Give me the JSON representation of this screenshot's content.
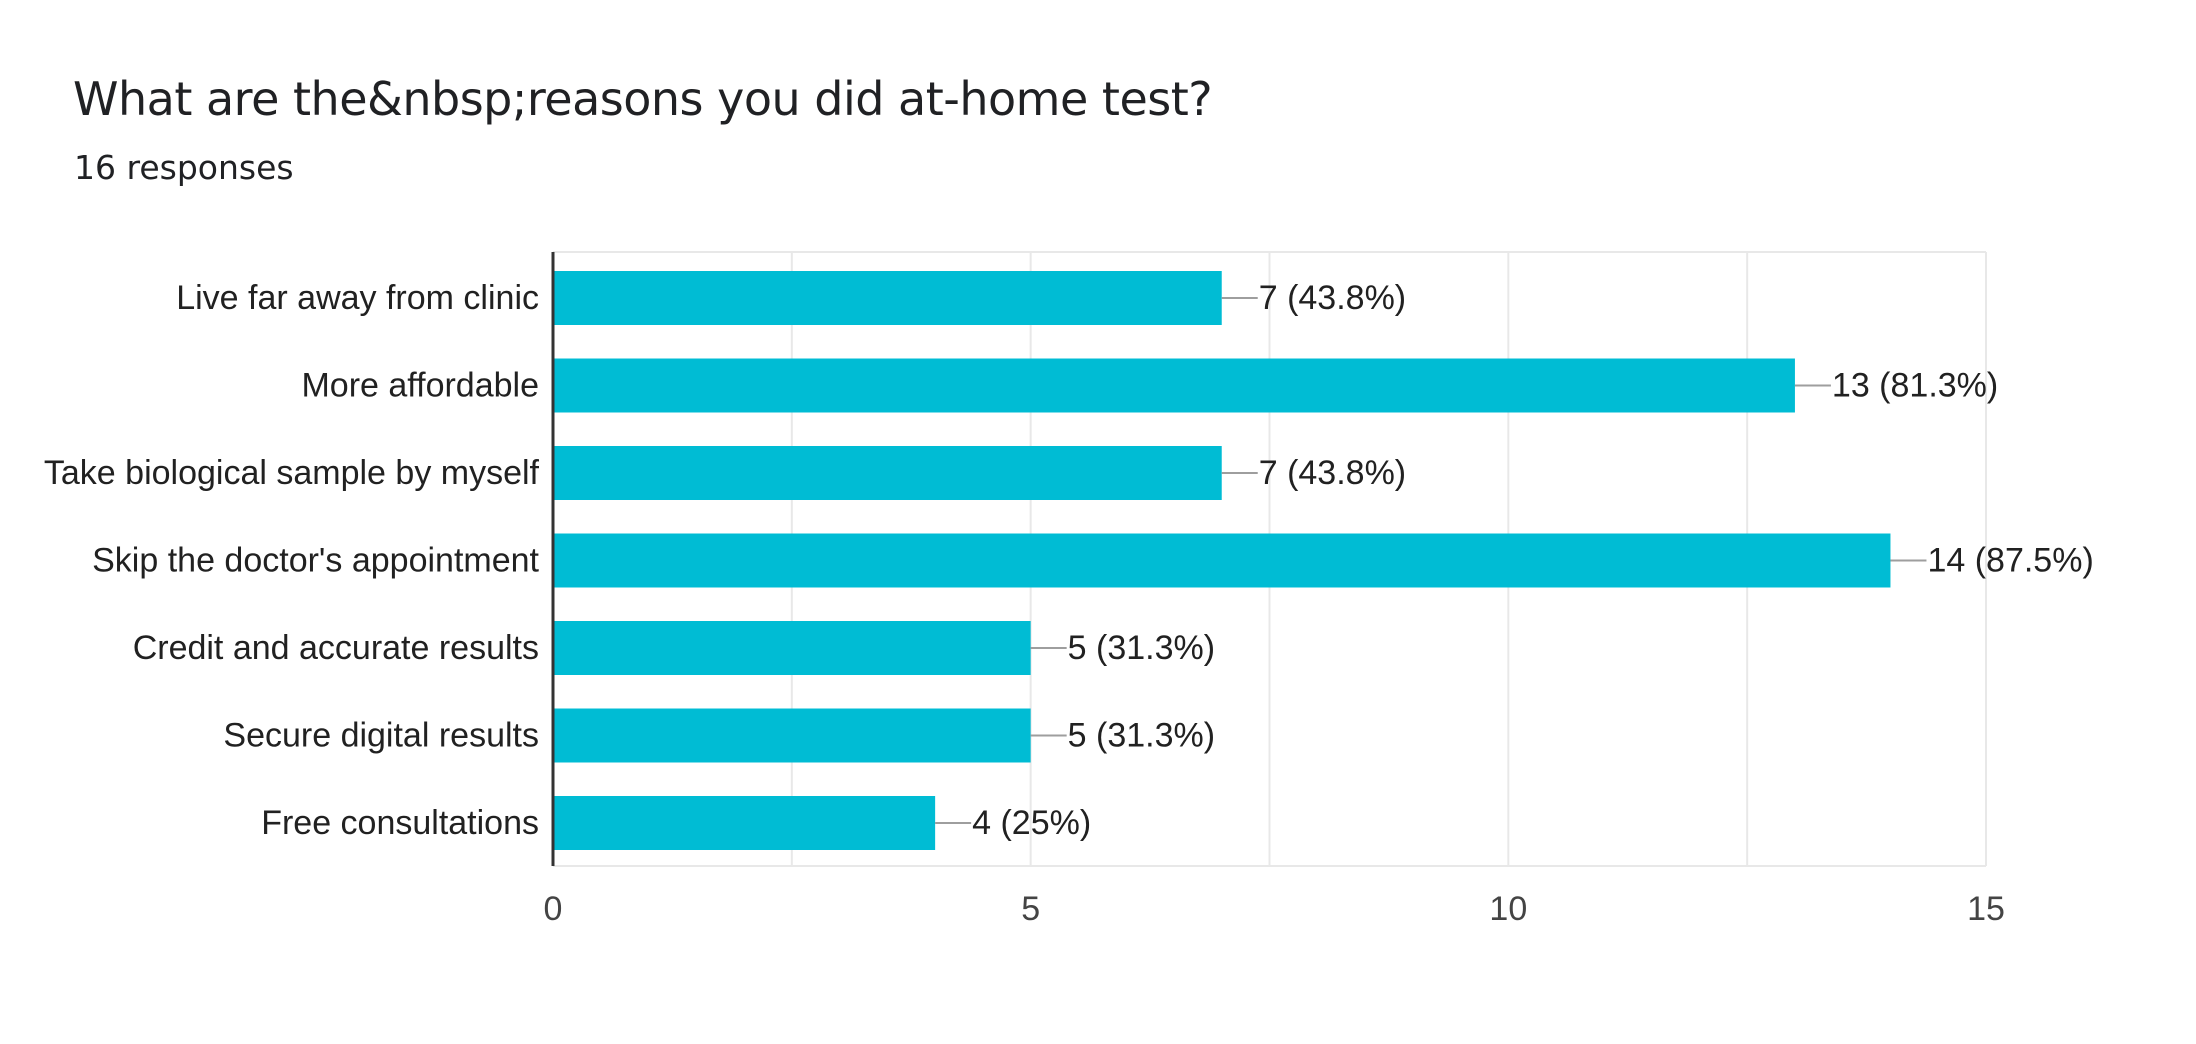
{
  "header": {
    "title": "What are the&nbsp;reasons you did at-home test?",
    "subtitle": "16 responses"
  },
  "colors": {
    "bar": "#00bcd4",
    "grid": "#e8e8e8",
    "axis": "#333333",
    "leader": "#9e9e9e"
  },
  "chart_data": {
    "type": "bar",
    "orientation": "horizontal",
    "categories": [
      "Live far away from clinic",
      "More affordable",
      "Take biological sample by myself",
      "Skip the doctor's appointment",
      "Credit and accurate results",
      "Secure digital results",
      "Free consultations"
    ],
    "values": [
      7,
      13,
      7,
      14,
      5,
      5,
      4
    ],
    "value_labels": [
      "7 (43.8%)",
      "13 (81.3%)",
      "7 (43.8%)",
      "14 (87.5%)",
      "5 (31.3%)",
      "5 (31.3%)",
      "4 (25%)"
    ],
    "xlim": [
      0,
      15
    ],
    "xticks": [
      0,
      5,
      10,
      15
    ],
    "xtick_labels": [
      "0",
      "5",
      "10",
      "15"
    ],
    "minor_gridlines": [
      2.5,
      7.5,
      12.5
    ],
    "grid": true
  }
}
